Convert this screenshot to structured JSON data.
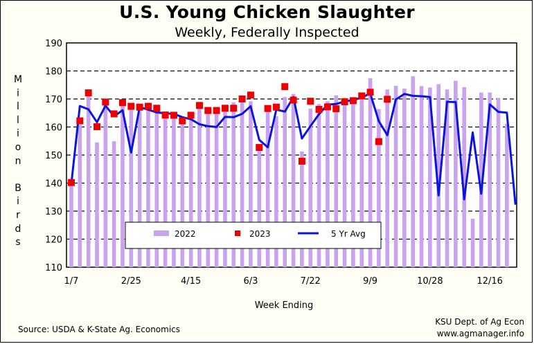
{
  "chart_data": {
    "type": "bar",
    "title": "U.S. Young Chicken Slaughter",
    "subtitle": "Weekly, Federally Inspected",
    "xlabel": "Week Ending",
    "ylabel": "Million Birds",
    "ylim": [
      110,
      190
    ],
    "yticks": [
      110,
      120,
      130,
      140,
      150,
      160,
      170,
      180,
      190
    ],
    "xtick_labels": [
      {
        "label": "1/7",
        "week": 1
      },
      {
        "label": "2/25",
        "week": 8
      },
      {
        "label": "4/15",
        "week": 15
      },
      {
        "label": "6/3",
        "week": 22
      },
      {
        "label": "7/22",
        "week": 29
      },
      {
        "label": "9/9",
        "week": 36
      },
      {
        "label": "10/28",
        "week": 43
      },
      {
        "label": "12/16",
        "week": 50
      }
    ],
    "grid": "horizontal dashed",
    "legend_position": "bottom-center",
    "colors": {
      "2022": "#c9a3ef",
      "2023": "#ee0000",
      "5 Yr Avg": "#0a14e0"
    },
    "series": [
      {
        "name": "2022",
        "type": "bar",
        "values": [
          140.3,
          160.8,
          172.5,
          154.5,
          168.6,
          154.9,
          168.1,
          167.8,
          167.6,
          167.2,
          165.3,
          164.5,
          164.1,
          163.8,
          162.9,
          167.3,
          166.2,
          166.6,
          166.4,
          168.8,
          170.4,
          169.2,
          152.9,
          165.6,
          163.8,
          170.7,
          171.8,
          151.3,
          166.6,
          168.2,
          169.2,
          171.3,
          170.4,
          170.4,
          171.2,
          177.4,
          166.4,
          173.4,
          174.7,
          173.7,
          178.1,
          174.6,
          174.1,
          175.3,
          173.4,
          176.5,
          174.2,
          127.3,
          172.3,
          172.3,
          170.4,
          161.2
        ]
      },
      {
        "name": "2023",
        "type": "scatter",
        "values": [
          140.2,
          162.2,
          172.2,
          160.1,
          168.9,
          164.7,
          168.7,
          167.4,
          167.1,
          167.4,
          166.7,
          164.3,
          164.2,
          162.2,
          164.2,
          167.7,
          165.9,
          165.9,
          166.7,
          166.7,
          170.0,
          171.4,
          152.7,
          166.6,
          167.1,
          174.4,
          169.6,
          147.8,
          169.2,
          166.3,
          167.2,
          166.5,
          169.0,
          169.4,
          171.1,
          172.4,
          154.8,
          169.9
        ]
      },
      {
        "name": "5 Yr Avg",
        "type": "line",
        "values": [
          139.8,
          167.5,
          166.3,
          161.7,
          167.6,
          163.8,
          166.0,
          150.9,
          167.1,
          166.2,
          165.2,
          164.9,
          164.7,
          163.5,
          162.8,
          161.0,
          160.3,
          160.0,
          163.6,
          163.5,
          164.7,
          167.4,
          155.4,
          152.8,
          166.2,
          165.5,
          170.7,
          155.9,
          160.3,
          164.6,
          168.0,
          168.2,
          169.1,
          169.6,
          170.5,
          172.0,
          162.1,
          157.1,
          169.8,
          171.8,
          171.1,
          171.0,
          170.7,
          135.6,
          169.0,
          168.9,
          134.2,
          158.1,
          136.2,
          168.1,
          165.4,
          165.1,
          132.3
        ]
      }
    ]
  },
  "source": "Source:  USDA & K-State Ag. Economics",
  "credit": {
    "line1": "KSU Dept. of Ag Econ",
    "line2": "www.agmanager.info"
  }
}
